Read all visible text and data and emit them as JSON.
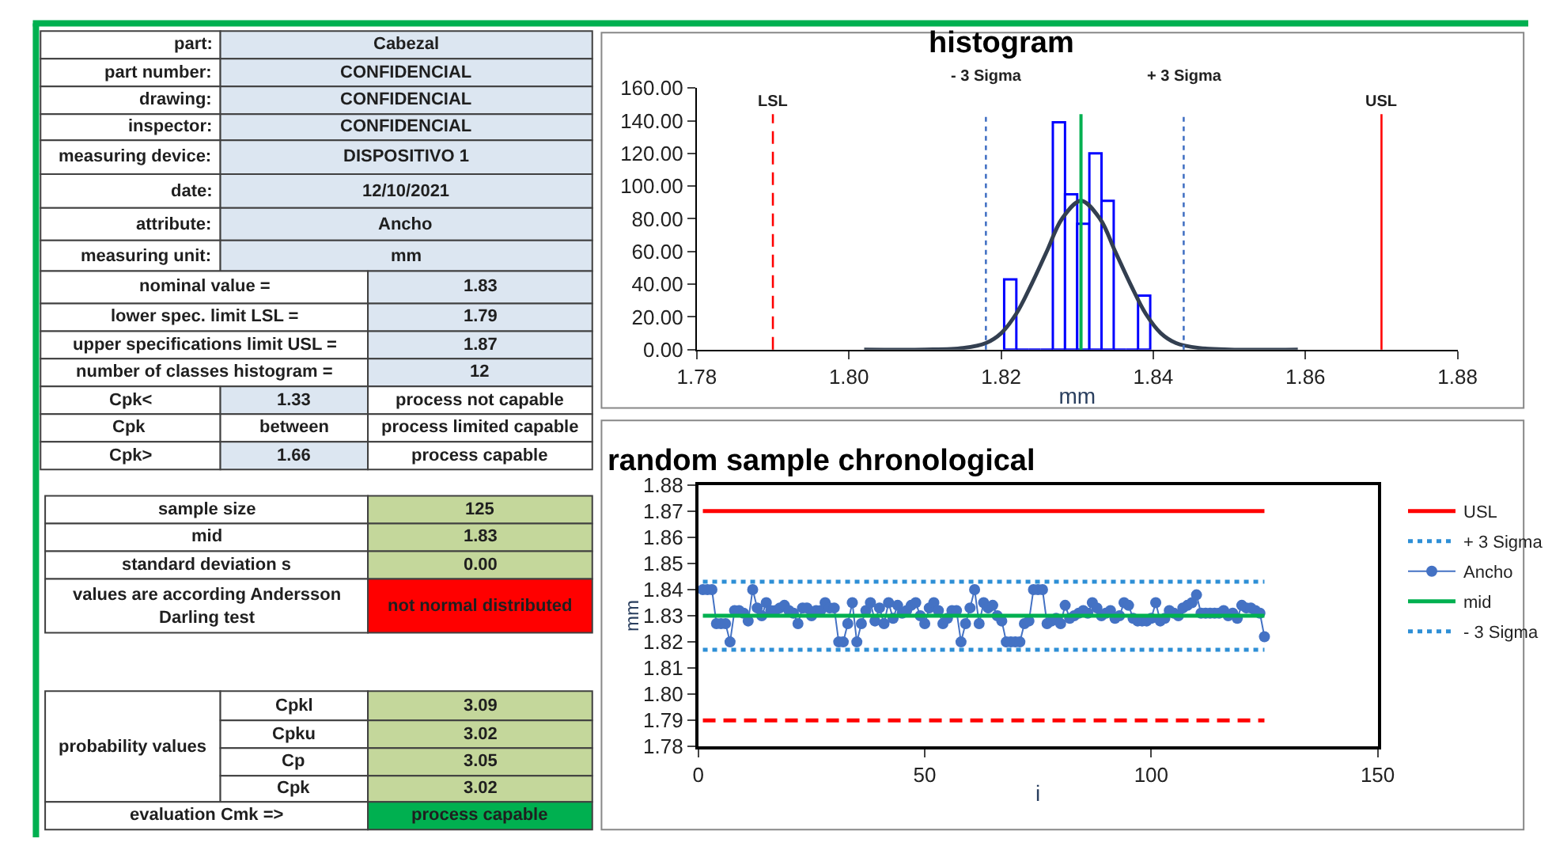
{
  "chart_data": [
    {
      "type": "other",
      "annotations": [
        "part:",
        "Cabezal",
        "part number:",
        "CONFIDENCIAL",
        "drawing:",
        "CONFIDENCIAL",
        "inspector:",
        "CONFIDENCIAL",
        "measuring device:",
        "DISPOSITIVO 1",
        "date:",
        "12/10/2021",
        "attribute:",
        "Ancho",
        "measuring unit:",
        "mm",
        "nominal value =",
        "1.83",
        "lower spec. limit LSL =",
        "1.79",
        "upper specifications limit USL =",
        "1.87",
        "number of classes histogram =",
        "12",
        "Cpk<",
        "1.33",
        "process not capable",
        "Cpk",
        "between",
        "process limited capable",
        "Cpk>",
        "1.66",
        "process capable",
        "sample size",
        "125",
        "mid",
        "1.83",
        "standard deviation s",
        "0.00",
        "values are according Andersson\nDarling test",
        "not normal distributed",
        "probability values",
        "Cpkl",
        "3.09",
        "Cpku",
        "3.02",
        "Cp",
        "3.05",
        "Cpk",
        "3.02",
        "evaluation Cmk =>",
        "process capable"
      ]
    },
    {
      "type": "histogram",
      "title": "histogram",
      "xlabel": "mm",
      "bins": [
        1.8204,
        1.822,
        1.8236,
        1.8252,
        1.8268,
        1.8284,
        1.83,
        1.8316,
        1.8332,
        1.8348,
        1.8364,
        1.838,
        1.8396
      ],
      "values": [
        43,
        0,
        0,
        0,
        139,
        95,
        77,
        120,
        91,
        0,
        0,
        33
      ],
      "color": "#0000ff",
      "series": [
        {
          "type": "line",
          "color": "#333f50",
          "x": [
            1.802,
            1.81,
            1.815,
            1.818,
            1.82,
            1.822,
            1.824,
            1.826,
            1.828,
            1.8305,
            1.833,
            1.835,
            1.837,
            1.839,
            1.841,
            1.843,
            1.846,
            1.85,
            1.859
          ],
          "values": [
            0,
            0,
            1,
            4,
            10,
            22,
            40,
            60,
            80,
            91,
            80,
            60,
            40,
            22,
            10,
            4,
            1,
            0,
            0
          ]
        }
      ],
      "ref_lines": [
        {
          "axis": "x",
          "value": 1.79,
          "label": "LSL",
          "color": "#ff0000",
          "line_style": "dashed"
        },
        {
          "axis": "x",
          "value": 1.818,
          "label": "- 3 Sigma",
          "color": "#4472c4",
          "line_style": "dotted"
        },
        {
          "axis": "x",
          "value": 1.8305,
          "color": "#00b050",
          "line_style": "solid"
        },
        {
          "axis": "x",
          "value": 1.844,
          "label": "+ 3 Sigma",
          "color": "#4472c4",
          "line_style": "dotted"
        },
        {
          "axis": "x",
          "value": 1.87,
          "label": "USL",
          "color": "#ff0000",
          "line_style": "solid"
        }
      ],
      "xlim": [
        1.78,
        1.88
      ],
      "xticks": [
        1.78,
        {
          "value": 1.8,
          "label": "1.80"
        },
        1.82,
        1.84,
        1.86,
        1.88
      ],
      "ylim": [
        0,
        160
      ],
      "yticks": [
        {
          "value": 0,
          "label": "0.00"
        },
        {
          "value": 20,
          "label": "20.00"
        },
        {
          "value": 40,
          "label": "40.00"
        },
        {
          "value": 60,
          "label": "60.00"
        },
        {
          "value": 80,
          "label": "80.00"
        },
        {
          "value": 100,
          "label": "100.00"
        },
        {
          "value": 120,
          "label": "120.00"
        },
        {
          "value": 140,
          "label": "140.00"
        },
        {
          "value": 160,
          "label": "160.00"
        }
      ]
    },
    {
      "type": "line",
      "title": "random sample chronological",
      "xlabel": "i",
      "ylabel": "mm",
      "legend": "right",
      "xlim": [
        0,
        150
      ],
      "xticks": [
        0,
        50,
        100,
        150
      ],
      "ylim": [
        1.78,
        1.88
      ],
      "yticks": [
        1.78,
        1.79,
        {
          "value": 1.8,
          "label": "1.80"
        },
        1.81,
        1.82,
        1.83,
        1.84,
        1.85,
        1.86,
        1.87,
        1.88
      ],
      "series": [
        {
          "name": "USL",
          "color": "#ff0000",
          "x": [
            1,
            125
          ],
          "values": [
            1.87,
            1.87
          ],
          "line_style": "solid"
        },
        {
          "name": "+ 3 Sigma",
          "color": "#2e8fd6",
          "x": [
            1,
            125
          ],
          "values": [
            1.843,
            1.843
          ],
          "line_style": "dotted"
        },
        {
          "name": "Ancho",
          "color": "#4472c4",
          "marker": "circle",
          "line_style": "solid",
          "x": [
            1,
            2,
            3,
            4,
            5,
            6,
            7,
            8,
            9,
            10,
            11,
            12,
            13,
            14,
            15,
            16,
            17,
            18,
            19,
            20,
            21,
            22,
            23,
            24,
            25,
            26,
            27,
            28,
            29,
            30,
            31,
            32,
            33,
            34,
            35,
            36,
            37,
            38,
            39,
            40,
            41,
            42,
            43,
            44,
            45,
            46,
            47,
            48,
            49,
            50,
            51,
            52,
            53,
            54,
            55,
            56,
            57,
            58,
            59,
            60,
            61,
            62,
            63,
            64,
            65,
            66,
            67,
            68,
            69,
            70,
            71,
            72,
            73,
            74,
            75,
            76,
            77,
            78,
            79,
            80,
            81,
            82,
            83,
            84,
            85,
            86,
            87,
            88,
            89,
            90,
            91,
            92,
            93,
            94,
            95,
            96,
            97,
            98,
            99,
            100,
            101,
            102,
            103,
            104,
            105,
            106,
            107,
            108,
            109,
            110,
            111,
            112,
            113,
            114,
            115,
            116,
            117,
            118,
            119,
            120,
            121,
            122,
            123,
            124,
            125
          ],
          "values": [
            1.84,
            1.84,
            1.84,
            1.827,
            1.827,
            1.827,
            1.82,
            1.832,
            1.832,
            1.831,
            1.828,
            1.84,
            1.833,
            1.83,
            1.835,
            1.832,
            1.832,
            1.833,
            1.834,
            1.832,
            1.831,
            1.827,
            1.833,
            1.833,
            1.83,
            1.832,
            1.832,
            1.835,
            1.833,
            1.833,
            1.82,
            1.82,
            1.827,
            1.835,
            1.82,
            1.827,
            1.832,
            1.835,
            1.828,
            1.833,
            1.827,
            1.835,
            1.829,
            1.834,
            1.831,
            1.832,
            1.834,
            1.835,
            1.83,
            1.827,
            1.833,
            1.835,
            1.832,
            1.827,
            1.829,
            1.832,
            1.832,
            1.82,
            1.827,
            1.833,
            1.84,
            1.827,
            1.835,
            1.833,
            1.834,
            1.83,
            1.828,
            1.82,
            1.82,
            1.82,
            1.82,
            1.827,
            1.828,
            1.84,
            1.84,
            1.84,
            1.827,
            1.828,
            1.829,
            1.827,
            1.834,
            1.829,
            1.83,
            1.831,
            1.832,
            1.831,
            1.835,
            1.833,
            1.83,
            1.831,
            1.832,
            1.829,
            1.83,
            1.835,
            1.834,
            1.829,
            1.828,
            1.828,
            1.828,
            1.829,
            1.835,
            1.828,
            1.829,
            1.832,
            1.831,
            1.83,
            1.833,
            1.834,
            1.835,
            1.838,
            1.831,
            1.831,
            1.831,
            1.831,
            1.831,
            1.832,
            1.83,
            1.831,
            1.829,
            1.834,
            1.833,
            1.833,
            1.832,
            1.831,
            1.822
          ]
        },
        {
          "name": "mid",
          "color": "#00b050",
          "x": [
            1,
            125
          ],
          "values": [
            1.83,
            1.83
          ],
          "line_style": "solid"
        },
        {
          "name": "- 3 Sigma",
          "color": "#2e8fd6",
          "x": [
            1,
            125
          ],
          "values": [
            1.817,
            1.817
          ],
          "line_style": "dotted"
        },
        {
          "color": "#ff0000",
          "x": [
            1,
            125
          ],
          "values": [
            1.79,
            1.79
          ],
          "line_style": "dashed"
        }
      ]
    }
  ]
}
